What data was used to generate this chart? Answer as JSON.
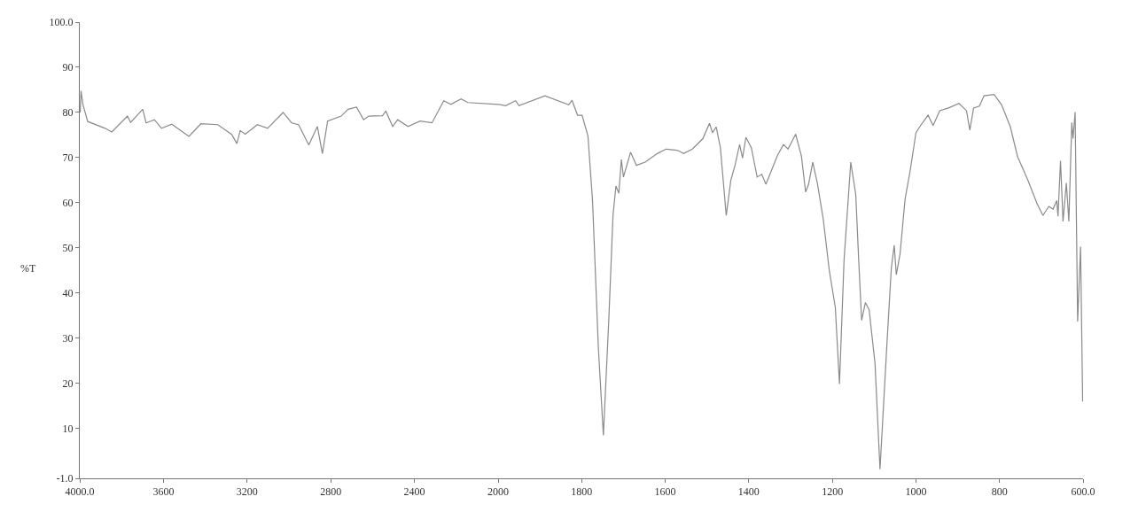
{
  "chart_data": [
    {
      "type": "line",
      "ylabel": "%T",
      "color": "#8a8a8a",
      "grid": false,
      "marker": "none",
      "line_style": "solid",
      "xlim": [
        4000,
        2000
      ],
      "xticks": [
        {
          "value": 4000,
          "label": "4000.0"
        },
        3600,
        3200,
        2800,
        2400
      ],
      "ylim": [
        -1,
        100
      ],
      "yticks": [
        {
          "value": -1,
          "label": "-1.0"
        },
        10,
        20,
        30,
        40,
        50,
        60,
        70,
        80,
        90,
        {
          "value": 100,
          "label": "100.0"
        }
      ],
      "x": [
        3998,
        3994,
        3985,
        3962,
        3879,
        3847,
        3772,
        3757,
        3699,
        3683,
        3643,
        3609,
        3560,
        3478,
        3421,
        3340,
        3273,
        3249,
        3233,
        3209,
        3151,
        3102,
        3028,
        2987,
        2954,
        2905,
        2864,
        2840,
        2815,
        2750,
        2717,
        2677,
        2643,
        2619,
        2553,
        2537,
        2504,
        2480,
        2431,
        2373,
        2316,
        2260,
        2226,
        2177,
        2145,
        2000
      ],
      "values": [
        80,
        84.8,
        81.8,
        78,
        76.5,
        75.7,
        79.2,
        77.8,
        80.7,
        77.7,
        78.4,
        76.5,
        77.4,
        74.7,
        77.5,
        77.3,
        75.1,
        73.1,
        76,
        75.2,
        77.3,
        76.5,
        80,
        77.7,
        77.3,
        72.8,
        76.9,
        70.9,
        78.1,
        79.2,
        80.7,
        81.2,
        78.4,
        79.2,
        79.3,
        80.3,
        76.9,
        78.4,
        76.9,
        78.1,
        77.7,
        82.6,
        81.8,
        83,
        82.2,
        81.8
      ]
    },
    {
      "type": "line",
      "color": "#8a8a8a",
      "grid": false,
      "marker": "none",
      "line_style": "solid",
      "tick_labels": "x",
      "xlim": [
        2000,
        600
      ],
      "xticks": [
        2000,
        1800,
        1600,
        1400,
        1200,
        1000,
        800,
        {
          "value": 600,
          "label": "600.0"
        }
      ],
      "ylim": [
        -1,
        100
      ],
      "x": [
        2000,
        1998,
        1982,
        1958,
        1950,
        1888,
        1831,
        1823,
        1810,
        1799,
        1785,
        1774,
        1760,
        1748,
        1735,
        1725,
        1718,
        1711,
        1705,
        1700,
        1683,
        1669,
        1648,
        1619,
        1598,
        1570,
        1556,
        1535,
        1510,
        1494,
        1487,
        1478,
        1468,
        1454,
        1443,
        1433,
        1422,
        1415,
        1407,
        1394,
        1380,
        1369,
        1359,
        1331,
        1317,
        1306,
        1288,
        1274,
        1264,
        1257,
        1247,
        1236,
        1222,
        1207,
        1193,
        1183,
        1172,
        1156,
        1144,
        1137,
        1130,
        1121,
        1112,
        1098,
        1086,
        1070,
        1059,
        1052,
        1047,
        1038,
        1026,
        1014,
        1000,
        989,
        971,
        959,
        943,
        922,
        897,
        879,
        871,
        862,
        848,
        837,
        813,
        795,
        774,
        757,
        732,
        710,
        696,
        682,
        672,
        663,
        660,
        654,
        648,
        640,
        634,
        627,
        624,
        619,
        613,
        606,
        601
      ],
      "values": [
        81.8,
        81.8,
        81.5,
        82.6,
        81.5,
        83.7,
        81.7,
        82.7,
        79.4,
        79.4,
        74.8,
        60.5,
        27.8,
        8.5,
        34.3,
        57.2,
        63.7,
        62.1,
        69.6,
        65.7,
        71.2,
        68.3,
        69,
        70.9,
        71.9,
        71.6,
        70.9,
        71.9,
        74.2,
        77.6,
        75.5,
        76.8,
        72.2,
        57.2,
        65,
        68.3,
        72.9,
        69.9,
        74.5,
        72.2,
        65.7,
        66.3,
        64.1,
        70.6,
        72.9,
        71.9,
        75.2,
        70.3,
        62.4,
        64.1,
        69,
        64.4,
        56.5,
        44.8,
        36.9,
        19.9,
        47.4,
        69,
        61.8,
        47.4,
        34,
        37.9,
        36.3,
        24.5,
        1,
        27.8,
        45.4,
        50.6,
        44.1,
        48.7,
        60.8,
        67,
        75.5,
        77.1,
        79.4,
        77.1,
        80.4,
        81,
        82,
        80.4,
        76.1,
        81,
        81.4,
        83.7,
        84,
        81.7,
        76.8,
        70.3,
        65,
        59.8,
        57.2,
        59.2,
        58.6,
        60.5,
        57,
        69.3,
        55.9,
        64.4,
        55.9,
        77.8,
        74.2,
        80.1,
        33.7,
        50.3,
        16
      ]
    }
  ]
}
